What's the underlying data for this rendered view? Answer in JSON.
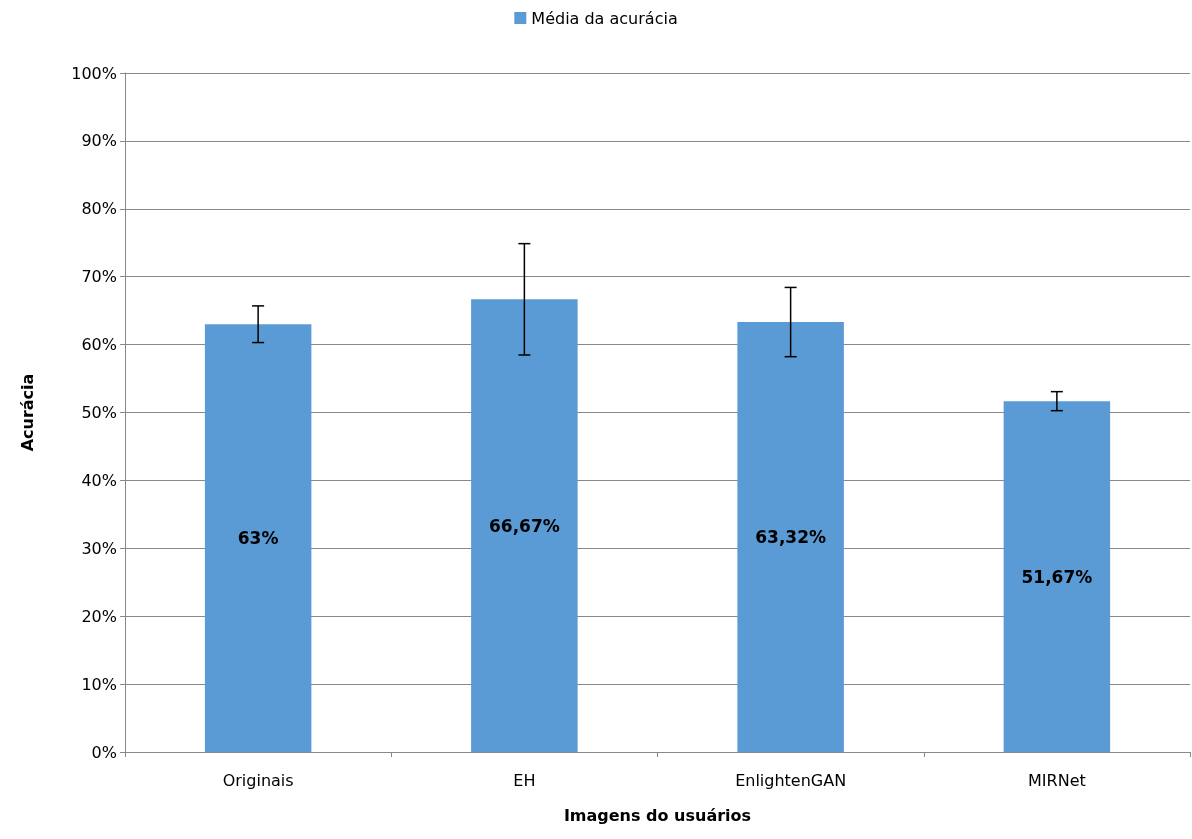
{
  "chart_data": {
    "type": "bar",
    "categories": [
      "Originais",
      "EH",
      "EnlightenGAN",
      "MIRNet"
    ],
    "series": [
      {
        "name": "Média da acurácia",
        "color": "#5b9bd5",
        "values": [
          63,
          66.67,
          63.32,
          51.67
        ],
        "errors": [
          2.7,
          8.2,
          5.1,
          1.4
        ],
        "value_labels": [
          "63%",
          "66,67%",
          "63,32%",
          "51,67%"
        ]
      }
    ],
    "xlabel": "Imagens do usuários",
    "ylabel": "Acurácia",
    "ylim": [
      0,
      100
    ],
    "yticks": [
      {
        "value": 0,
        "label": "0%"
      },
      {
        "value": 10,
        "label": "10%"
      },
      {
        "value": 20,
        "label": "20%"
      },
      {
        "value": 30,
        "label": "30%"
      },
      {
        "value": 40,
        "label": "40%"
      },
      {
        "value": 50,
        "label": "50%"
      },
      {
        "value": 60,
        "label": "60%"
      },
      {
        "value": 70,
        "label": "70%"
      },
      {
        "value": 80,
        "label": "80%"
      },
      {
        "value": 90,
        "label": "90%"
      },
      {
        "value": 100,
        "label": "100%"
      }
    ],
    "grid": "y",
    "legend": "top"
  }
}
